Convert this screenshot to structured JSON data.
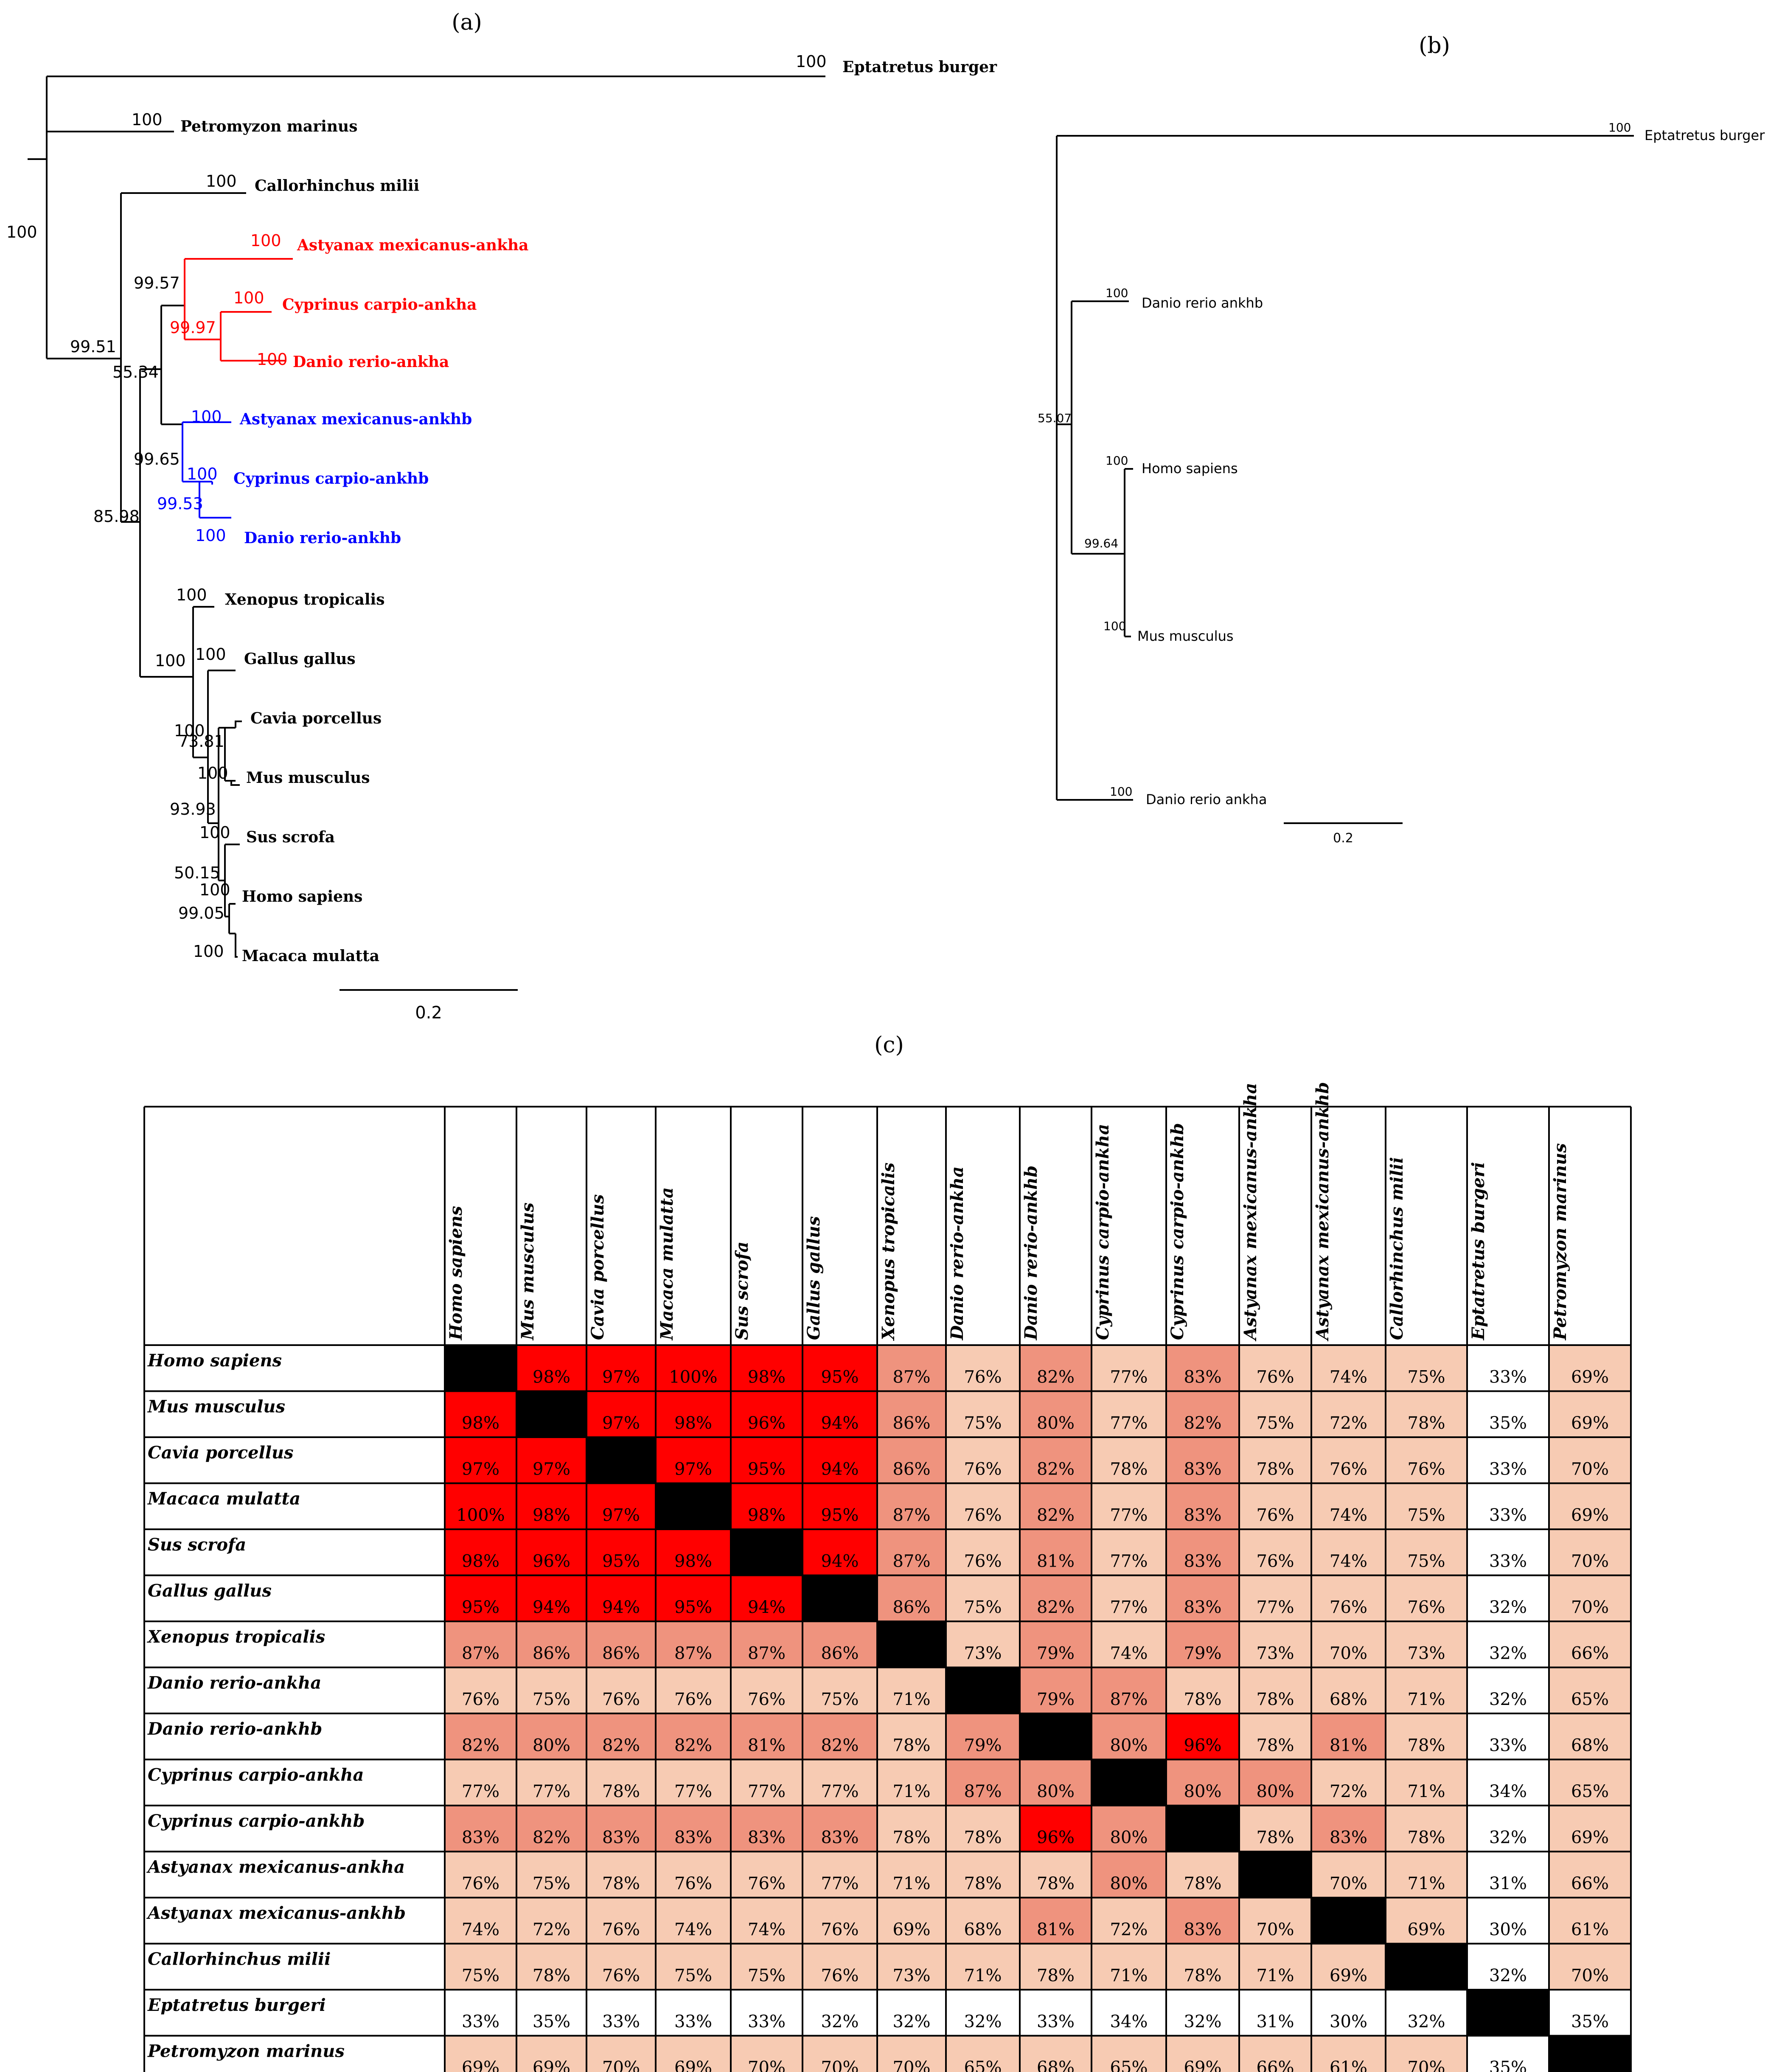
{
  "panels": {
    "a": "(a)",
    "b": "(b)",
    "c": "(c)"
  },
  "colors": {
    "ankha": "#ff0000",
    "ankhb": "#0000ff",
    "default": "#000000"
  },
  "tree_a": {
    "scale_label": "0.2",
    "tips": [
      {
        "name": "Eptatretus burger",
        "support": "100",
        "group": "default"
      },
      {
        "name": "Petromyzon marinus",
        "support": "100",
        "group": "default"
      },
      {
        "name": "Callorhinchus milii",
        "support": "100",
        "group": "default"
      },
      {
        "name": "Astyanax mexicanus-ankha",
        "support": "100",
        "group": "ankha"
      },
      {
        "name": "Cyprinus carpio-ankha",
        "support": "100",
        "group": "ankha"
      },
      {
        "name": "Danio rerio-ankha",
        "support": "100",
        "group": "ankha"
      },
      {
        "name": "Astyanax mexicanus-ankhb",
        "support": "100",
        "group": "ankhb"
      },
      {
        "name": "Cyprinus carpio-ankhb",
        "support": "100",
        "group": "ankhb"
      },
      {
        "name": "Danio rerio-ankhb",
        "support": "100",
        "group": "ankhb"
      },
      {
        "name": "Xenopus tropicalis",
        "support": "100",
        "group": "default"
      },
      {
        "name": "Gallus gallus",
        "support": "100",
        "group": "default"
      },
      {
        "name": "Cavia porcellus",
        "support": "",
        "group": "default"
      },
      {
        "name": "Mus musculus",
        "support": "100",
        "group": "default"
      },
      {
        "name": "Sus scrofa",
        "support": "100",
        "group": "default"
      },
      {
        "name": "Homo sapiens",
        "support": "100",
        "group": "default"
      },
      {
        "name": "Macaca mulatta",
        "support": "100",
        "group": "default"
      }
    ],
    "internal_support": [
      {
        "value": "100",
        "group": "default"
      },
      {
        "value": "99.51",
        "group": "default"
      },
      {
        "value": "99.57",
        "group": "default"
      },
      {
        "value": "99.97",
        "group": "ankha"
      },
      {
        "value": "55.34",
        "group": "default"
      },
      {
        "value": "99.65",
        "group": "default"
      },
      {
        "value": "99.53",
        "group": "ankhb"
      },
      {
        "value": "85.98",
        "group": "default"
      },
      {
        "value": "100",
        "group": "default"
      },
      {
        "value": "100",
        "group": "default"
      },
      {
        "value": "73.81",
        "group": "default"
      },
      {
        "value": "93.93",
        "group": "default"
      },
      {
        "value": "50.15",
        "group": "default"
      },
      {
        "value": "99.05",
        "group": "default"
      }
    ]
  },
  "tree_b": {
    "scale_label": "0.2",
    "tips": [
      {
        "name": "Eptatretus burger",
        "support": "100"
      },
      {
        "name": "Danio rerio ankhb",
        "support": "100"
      },
      {
        "name": "Homo sapiens",
        "support": "100"
      },
      {
        "name": "Mus musculus",
        "support": "100"
      },
      {
        "name": "Danio rerio ankha",
        "support": "100"
      }
    ],
    "internal_support": [
      "55.07",
      "99.64"
    ]
  },
  "heatmap": {
    "species": [
      "Homo sapiens",
      "Mus musculus",
      "Cavia porcellus",
      "Macaca mulatta",
      "Sus scrofa",
      "Gallus gallus",
      "Xenopus tropicalis",
      "Danio rerio-ankha",
      "Danio rerio-ankhb",
      "Cyprinus carpio-ankha",
      "Cyprinus carpio-ankhb",
      "Astyanax mexicanus-ankha",
      "Astyanax mexicanus-ankhb",
      "Callorhinchus milii",
      "Eptatretus burgeri",
      "Petromyzon marinus"
    ],
    "unit": "%",
    "color_scale": {
      "high": "#ff0000",
      "mid": "#ef937e",
      "low": "#f7cbb3",
      "none": "#ffffff",
      "diagonal": "#000000"
    },
    "matrix": [
      [
        null,
        98,
        97,
        100,
        98,
        95,
        87,
        76,
        82,
        77,
        83,
        76,
        74,
        75,
        33,
        69
      ],
      [
        98,
        null,
        97,
        98,
        96,
        94,
        86,
        75,
        80,
        77,
        82,
        75,
        72,
        78,
        35,
        69
      ],
      [
        97,
        97,
        null,
        97,
        95,
        94,
        86,
        76,
        82,
        78,
        83,
        78,
        76,
        76,
        33,
        70
      ],
      [
        100,
        98,
        97,
        null,
        98,
        95,
        87,
        76,
        82,
        77,
        83,
        76,
        74,
        75,
        33,
        69
      ],
      [
        98,
        96,
        95,
        98,
        null,
        94,
        87,
        76,
        81,
        77,
        83,
        76,
        74,
        75,
        33,
        70
      ],
      [
        95,
        94,
        94,
        95,
        94,
        null,
        86,
        75,
        82,
        77,
        83,
        77,
        76,
        76,
        32,
        70
      ],
      [
        87,
        86,
        86,
        87,
        87,
        86,
        null,
        73,
        79,
        74,
        79,
        73,
        70,
        73,
        32,
        66
      ],
      [
        76,
        75,
        76,
        76,
        76,
        75,
        71,
        null,
        79,
        87,
        78,
        78,
        68,
        71,
        32,
        65
      ],
      [
        82,
        80,
        82,
        82,
        81,
        82,
        78,
        79,
        null,
        80,
        96,
        78,
        81,
        78,
        33,
        68
      ],
      [
        77,
        77,
        78,
        77,
        77,
        77,
        71,
        87,
        80,
        null,
        80,
        80,
        72,
        71,
        34,
        65
      ],
      [
        83,
        82,
        83,
        83,
        83,
        83,
        78,
        78,
        96,
        80,
        null,
        78,
        83,
        78,
        32,
        69
      ],
      [
        76,
        75,
        78,
        76,
        76,
        77,
        71,
        78,
        78,
        80,
        78,
        null,
        70,
        71,
        31,
        66
      ],
      [
        74,
        72,
        76,
        74,
        74,
        76,
        69,
        68,
        81,
        72,
        83,
        70,
        null,
        69,
        30,
        61
      ],
      [
        75,
        78,
        76,
        75,
        75,
        76,
        73,
        71,
        78,
        71,
        78,
        71,
        69,
        null,
        32,
        70
      ],
      [
        33,
        35,
        33,
        33,
        33,
        32,
        32,
        32,
        33,
        34,
        32,
        31,
        30,
        32,
        null,
        35
      ],
      [
        69,
        69,
        70,
        69,
        70,
        70,
        70,
        65,
        68,
        65,
        69,
        66,
        61,
        70,
        35,
        null
      ]
    ]
  }
}
